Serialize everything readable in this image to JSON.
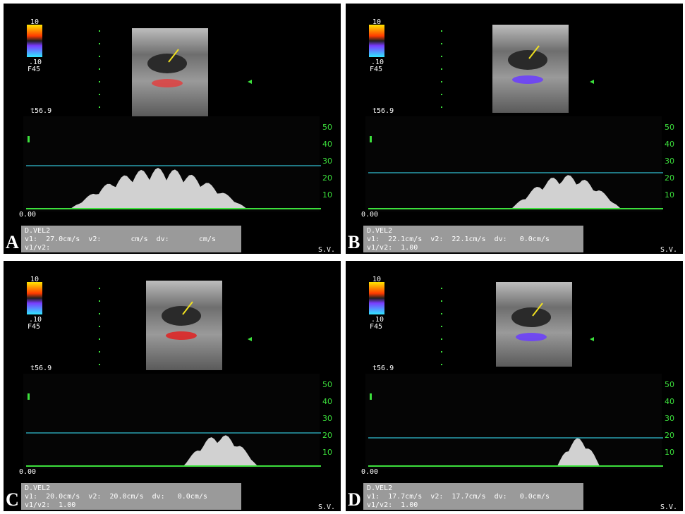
{
  "panels": [
    {
      "letter": "A",
      "scale_top": "10",
      "scale_bottom": ".10",
      "probe": "F45",
      "depth": "t56.9",
      "baseline": "0.00",
      "scale_ticks": [
        "50",
        "40",
        "30",
        "20",
        "10"
      ],
      "measurement": {
        "title": "D.VEL2",
        "line1": "v1:  27.0cm/s  v2:       cm/s  dv:       cm/s",
        "line2": "v1/v2:"
      },
      "corner": "S.V."
    },
    {
      "letter": "B",
      "scale_top": "10",
      "scale_bottom": ".10",
      "probe": "F45",
      "depth": "t56.9",
      "baseline": "0.00",
      "scale_ticks": [
        "50",
        "40",
        "30",
        "20",
        "10"
      ],
      "measurement": {
        "title": "D.VEL2",
        "line1": "v1:  22.1cm/s  v2:  22.1cm/s  dv:   0.0cm/s",
        "line2": "v1/v2:  1.00"
      },
      "corner": "S.V."
    },
    {
      "letter": "C",
      "scale_top": "10",
      "scale_bottom": ".10",
      "probe": "F45",
      "depth": "t56.9",
      "baseline": "0.00",
      "scale_ticks": [
        "50",
        "40",
        "30",
        "20",
        "10"
      ],
      "measurement": {
        "title": "D.VEL2",
        "line1": "v1:  20.0cm/s  v2:  20.0cm/s  dv:   0.0cm/s",
        "line2": "v1/v2:  1.00"
      },
      "corner": "S.V."
    },
    {
      "letter": "D",
      "scale_top": "10",
      "scale_bottom": ".10",
      "probe": "F45",
      "depth": "t56.9",
      "baseline": "0.00",
      "scale_ticks": [
        "50",
        "40",
        "30",
        "20",
        "10"
      ],
      "measurement": {
        "title": "D.VEL2",
        "line1": "v1:  17.7cm/s  v2:  17.7cm/s  dv:   0.0cm/s",
        "line2": "v1/v2:  1.00"
      },
      "corner": "S.V."
    }
  ]
}
